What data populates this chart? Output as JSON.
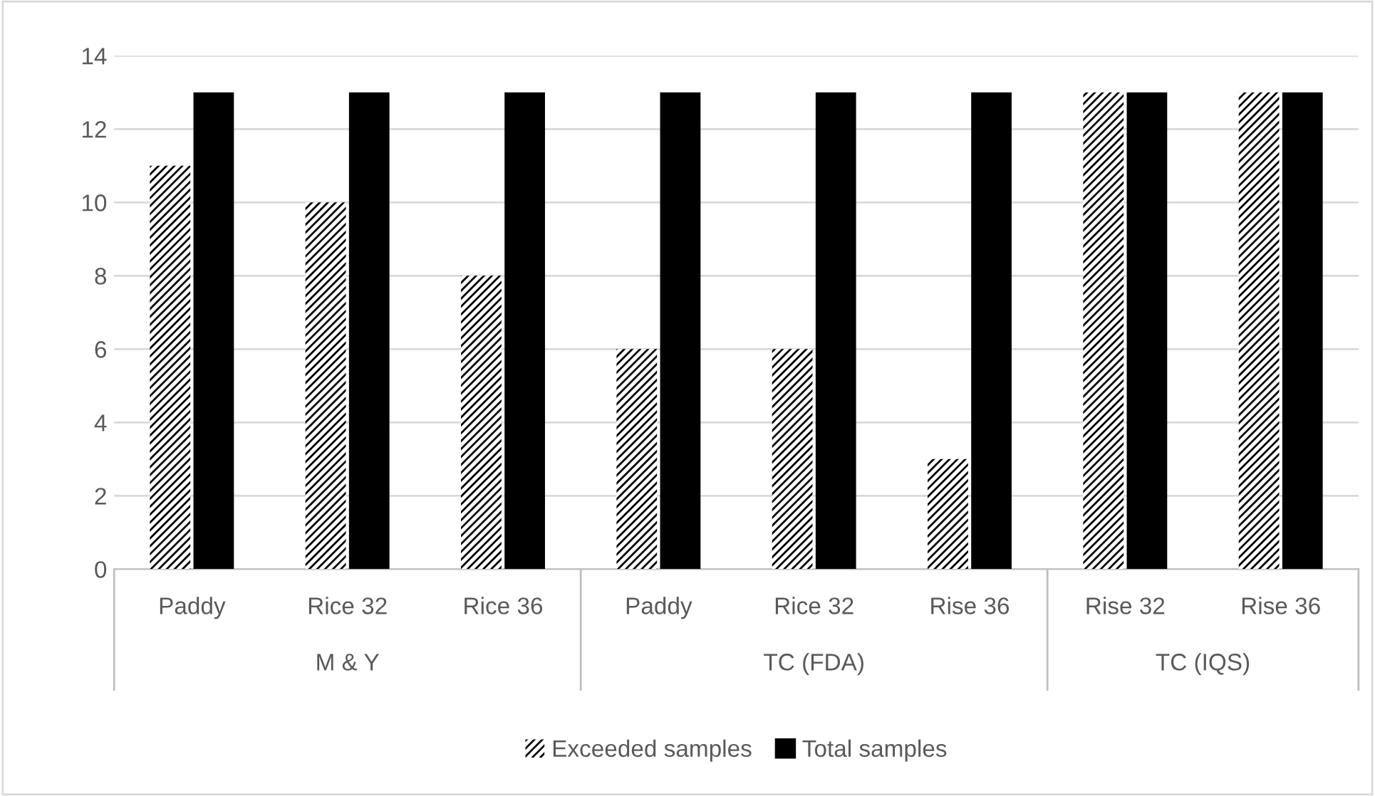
{
  "chart_data": {
    "type": "bar",
    "categories": [
      "Paddy",
      "Rice 32",
      "Rice 36",
      "Paddy",
      "Rice 32",
      "Rise 36",
      "Rise 32",
      "Rise 36"
    ],
    "series": [
      {
        "name": "Exceeded samples",
        "color": "#000000",
        "values": [
          11,
          10,
          8,
          6,
          6,
          3,
          13,
          13
        ]
      },
      {
        "name": "Total samples",
        "color": "#000000",
        "values": [
          13,
          13,
          13,
          13,
          13,
          13,
          13,
          13
        ]
      }
    ],
    "annotations": [
      "M & Y",
      "TC (FDA)",
      "TC (IQS)"
    ],
    "ylim": [
      0,
      14
    ],
    "yticks": [
      0,
      2,
      4,
      6,
      8,
      10,
      12,
      14
    ],
    "grid": "y",
    "legend": "bottom"
  }
}
